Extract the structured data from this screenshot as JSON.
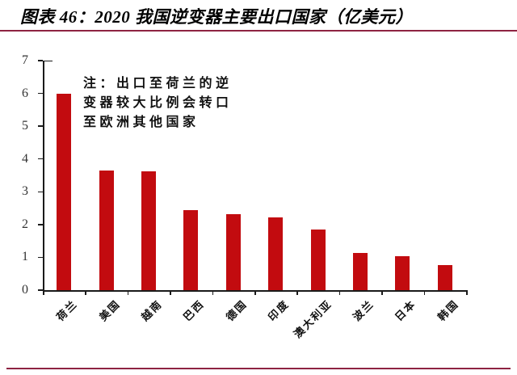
{
  "header": {
    "title": "图表 46：2020 我国逆变器主要出口国家（亿美元）"
  },
  "note": {
    "lines": [
      "注：出口至荷兰的逆",
      "变器较大比例会转口",
      "至欧洲其他国家"
    ]
  },
  "chart_data": {
    "type": "bar",
    "title": "2020 我国逆变器主要出口国家（亿美元）",
    "categories": [
      "荷兰",
      "美国",
      "越南",
      "巴西",
      "德国",
      "印度",
      "澳大利亚",
      "波兰",
      "日本",
      "韩国"
    ],
    "values": [
      6.0,
      3.66,
      3.62,
      2.45,
      2.32,
      2.21,
      1.86,
      1.13,
      1.03,
      0.77
    ],
    "xlabel": "",
    "ylabel": "",
    "ylim": [
      0,
      7
    ],
    "yticks": [
      0,
      1,
      2,
      3,
      4,
      5,
      6,
      7
    ],
    "grid": false,
    "legend_position": "none",
    "bar_color": "#C20B0F"
  },
  "colors": {
    "bar": "#C20B0F",
    "rule": "#8E2342",
    "axis": "#1a1a1a"
  }
}
